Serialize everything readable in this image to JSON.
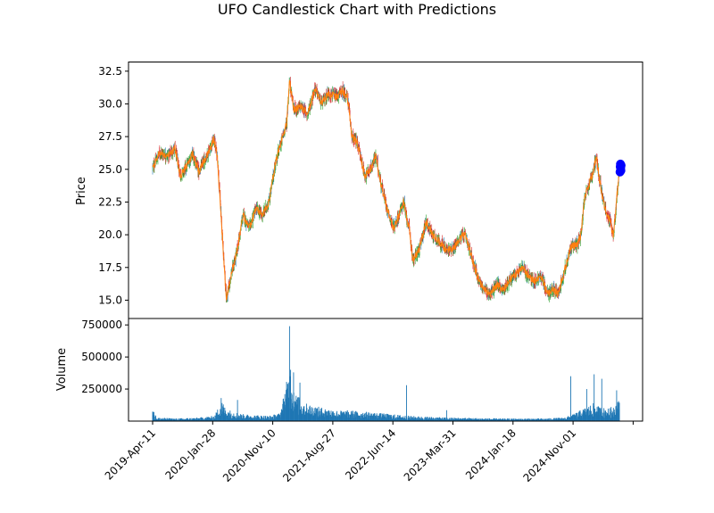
{
  "chart_data": [
    {
      "type": "candlestick",
      "title": "UFO Candlestick Chart with Predictions",
      "xlabel": "",
      "ylabel": "Price",
      "ylim": [
        13.6,
        33.2
      ],
      "yticks": [
        15.0,
        17.5,
        20.0,
        22.5,
        25.0,
        27.5,
        30.0,
        32.5
      ],
      "ytick_labels": [
        "15.0",
        "17.5",
        "20.0",
        "22.5",
        "25.0",
        "27.5",
        "30.0",
        "32.5"
      ],
      "x_date_range": [
        "2019-04-11",
        "2025-04-18"
      ],
      "colors": {
        "up": "#2ca02c",
        "down": "#d62728",
        "line": "#ff7f0e",
        "other": "#1f77b4",
        "prediction": "#0000ff"
      },
      "close_anchors": [
        [
          "2019-04-11",
          25.1
        ],
        [
          "2019-05-15",
          26.3
        ],
        [
          "2019-06-20",
          26.0
        ],
        [
          "2019-07-25",
          26.6
        ],
        [
          "2019-08-20",
          24.5
        ],
        [
          "2019-09-20",
          25.3
        ],
        [
          "2019-10-15",
          26.2
        ],
        [
          "2019-11-15",
          24.8
        ],
        [
          "2019-12-20",
          26.0
        ],
        [
          "2020-01-25",
          27.3
        ],
        [
          "2020-02-10",
          26.0
        ],
        [
          "2020-02-25",
          22.0
        ],
        [
          "2020-03-12",
          18.0
        ],
        [
          "2020-03-23",
          15.0
        ],
        [
          "2020-04-15",
          17.0
        ],
        [
          "2020-05-10",
          18.5
        ],
        [
          "2020-06-10",
          21.5
        ],
        [
          "2020-07-10",
          20.5
        ],
        [
          "2020-08-10",
          22.0
        ],
        [
          "2020-09-10",
          21.5
        ],
        [
          "2020-10-10",
          22.5
        ],
        [
          "2020-11-10",
          25.5
        ],
        [
          "2020-12-05",
          27.0
        ],
        [
          "2021-01-01",
          28.5
        ],
        [
          "2021-01-15",
          31.8
        ],
        [
          "2021-02-05",
          29.5
        ],
        [
          "2021-03-10",
          29.8
        ],
        [
          "2021-04-10",
          29.2
        ],
        [
          "2021-05-15",
          31.2
        ],
        [
          "2021-06-15",
          30.0
        ],
        [
          "2021-07-15",
          30.8
        ],
        [
          "2021-08-27",
          30.5
        ],
        [
          "2021-09-20",
          31.0
        ],
        [
          "2021-10-15",
          30.5
        ],
        [
          "2021-11-05",
          27.5
        ],
        [
          "2021-12-01",
          27.0
        ],
        [
          "2022-01-05",
          24.5
        ],
        [
          "2022-02-01",
          25.0
        ],
        [
          "2022-02-25",
          26.0
        ],
        [
          "2022-03-20",
          24.0
        ],
        [
          "2022-04-20",
          22.0
        ],
        [
          "2022-05-20",
          20.5
        ],
        [
          "2022-06-14",
          21.5
        ],
        [
          "2022-07-05",
          22.5
        ],
        [
          "2022-08-01",
          20.5
        ],
        [
          "2022-08-20",
          18.0
        ],
        [
          "2022-09-20",
          19.0
        ],
        [
          "2022-10-20",
          21.0
        ],
        [
          "2022-11-20",
          20.0
        ],
        [
          "2022-12-20",
          19.5
        ],
        [
          "2023-01-25",
          18.8
        ],
        [
          "2023-03-01",
          19.0
        ],
        [
          "2023-03-31",
          19.8
        ],
        [
          "2023-04-20",
          20.0
        ],
        [
          "2023-05-20",
          18.5
        ],
        [
          "2023-06-20",
          16.8
        ],
        [
          "2023-07-20",
          15.8
        ],
        [
          "2023-08-20",
          15.5
        ],
        [
          "2023-09-20",
          16.2
        ],
        [
          "2023-10-20",
          15.8
        ],
        [
          "2023-11-20",
          16.6
        ],
        [
          "2023-12-20",
          17.0
        ],
        [
          "2024-01-18",
          17.5
        ],
        [
          "2024-02-15",
          16.8
        ],
        [
          "2024-03-15",
          16.5
        ],
        [
          "2024-04-15",
          16.8
        ],
        [
          "2024-05-15",
          15.5
        ],
        [
          "2024-06-15",
          15.8
        ],
        [
          "2024-07-01",
          15.5
        ],
        [
          "2024-07-25",
          16.8
        ],
        [
          "2024-08-15",
          18.0
        ],
        [
          "2024-09-05",
          19.2
        ],
        [
          "2024-09-30",
          19.2
        ],
        [
          "2024-10-20",
          20.0
        ],
        [
          "2024-11-01",
          22.5
        ],
        [
          "2024-11-20",
          23.5
        ],
        [
          "2024-12-10",
          24.5
        ],
        [
          "2024-12-31",
          26.0
        ],
        [
          "2025-01-20",
          23.5
        ],
        [
          "2025-02-10",
          22.0
        ],
        [
          "2025-03-05",
          21.0
        ],
        [
          "2025-03-20",
          20.0
        ],
        [
          "2025-04-01",
          22.0
        ],
        [
          "2025-04-18",
          25.0
        ]
      ],
      "predictions": [
        [
          "2025-04-21",
          24.8
        ],
        [
          "2025-04-22",
          25.2
        ],
        [
          "2025-04-23",
          25.4
        ],
        [
          "2025-04-24",
          25.1
        ],
        [
          "2025-04-25",
          24.9
        ],
        [
          "2025-04-26",
          25.3
        ]
      ]
    },
    {
      "type": "bar",
      "ylabel": "Volume",
      "ylim": [
        0,
        800000
      ],
      "yticks": [
        250000,
        500000,
        750000
      ],
      "ytick_labels": [
        "250000",
        "500000",
        "750000"
      ],
      "xtick_labels": [
        "2019-Apr-11",
        "2020-Jan-28",
        "2020-Nov-10",
        "2021-Aug-27",
        "2022-Jun-14",
        "2023-Mar-31",
        "2024-Jan-18",
        "2024-Nov-01"
      ],
      "x_date_range": [
        "2019-04-11",
        "2025-04-18"
      ],
      "color": "#1f77b4",
      "volume_anchors": [
        [
          "2019-04-11",
          70000
        ],
        [
          "2019-05-01",
          20000
        ],
        [
          "2019-08-01",
          15000
        ],
        [
          "2019-11-15",
          20000
        ],
        [
          "2020-01-28",
          30000
        ],
        [
          "2020-03-01",
          120000
        ],
        [
          "2020-03-20",
          70000
        ],
        [
          "2020-06-01",
          40000
        ],
        [
          "2020-08-01",
          35000
        ],
        [
          "2020-10-10",
          30000
        ],
        [
          "2020-12-01",
          45000
        ],
        [
          "2021-01-15",
          300000
        ],
        [
          "2021-02-15",
          150000
        ],
        [
          "2021-04-01",
          100000
        ],
        [
          "2021-06-01",
          80000
        ],
        [
          "2021-08-27",
          60000
        ],
        [
          "2021-11-01",
          60000
        ],
        [
          "2022-02-01",
          50000
        ],
        [
          "2022-05-01",
          40000
        ],
        [
          "2022-08-01",
          30000
        ],
        [
          "2022-11-01",
          25000
        ],
        [
          "2023-02-01",
          20000
        ],
        [
          "2023-06-01",
          18000
        ],
        [
          "2023-10-01",
          15000
        ],
        [
          "2024-01-18",
          15000
        ],
        [
          "2024-05-01",
          15000
        ],
        [
          "2024-08-01",
          20000
        ],
        [
          "2024-09-15",
          40000
        ],
        [
          "2024-10-15",
          60000
        ],
        [
          "2024-11-15",
          80000
        ],
        [
          "2024-12-15",
          100000
        ],
        [
          "2025-01-15",
          80000
        ],
        [
          "2025-03-01",
          70000
        ],
        [
          "2025-04-18",
          120000
        ]
      ],
      "spikes": [
        [
          "2020-02-28",
          180000
        ],
        [
          "2020-05-15",
          165000
        ],
        [
          "2021-01-15",
          740000
        ],
        [
          "2021-01-20",
          400000
        ],
        [
          "2021-02-03",
          380000
        ],
        [
          "2021-03-05",
          300000
        ],
        [
          "2022-07-20",
          280000
        ],
        [
          "2023-01-25",
          85000
        ],
        [
          "2024-09-01",
          350000
        ],
        [
          "2024-11-15",
          250000
        ],
        [
          "2024-12-20",
          365000
        ],
        [
          "2025-01-25",
          330000
        ],
        [
          "2025-04-05",
          240000
        ]
      ]
    }
  ]
}
